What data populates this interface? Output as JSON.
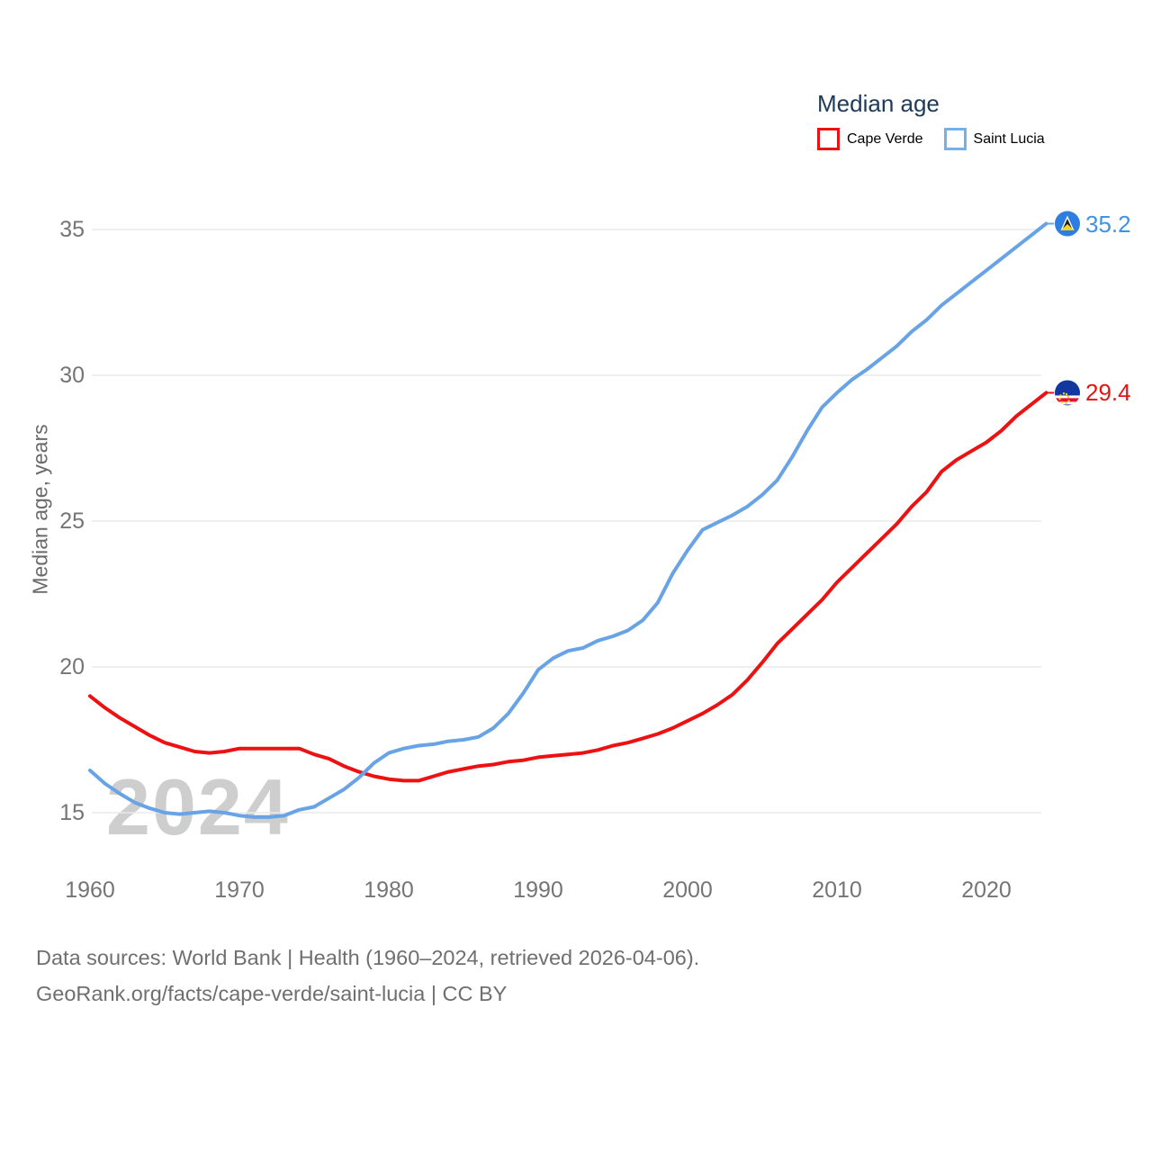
{
  "legend": {
    "title": "Median age",
    "items": [
      {
        "label": "Cape Verde",
        "box_color": "#ee1111"
      },
      {
        "label": "Saint Lucia",
        "box_color": "#74b0ea"
      }
    ]
  },
  "watermark": "2024",
  "y_axis_title": "Median age, years",
  "footer": {
    "line1": "Data sources: World Bank | Health (1960–2024, retrieved 2026-04-06).",
    "line2": "GeoRank.org/facts/cape-verde/saint-lucia | CC BY"
  },
  "colors": {
    "grid": "#eaeaea",
    "axis_text": "#757575",
    "legend_text": "#1e3a56",
    "cape_verde_red": "#ee1111",
    "saint_lucia_blue": "#68a3e6",
    "saint_lucia_label_blue": "#4191e6",
    "saint_lucia_circle": "#2e7de0",
    "cape_verde_circle": "#1238a0",
    "watermark_gray": "#cecece"
  },
  "chart_data": {
    "type": "line",
    "title": "Median age",
    "xlabel": "",
    "ylabel": "Median age, years",
    "grid": "horizontal-only",
    "legend_position": "top-right",
    "x_range": [
      1960,
      2024
    ],
    "ylim": [
      13.8,
      36.3
    ],
    "y_ticks": [
      15,
      20,
      25,
      30,
      35
    ],
    "x_ticks": [
      1960,
      1970,
      1980,
      1990,
      2000,
      2010,
      2020
    ],
    "x": [
      1960,
      1961,
      1962,
      1963,
      1964,
      1965,
      1966,
      1967,
      1968,
      1969,
      1970,
      1971,
      1972,
      1973,
      1974,
      1975,
      1976,
      1977,
      1978,
      1979,
      1980,
      1981,
      1982,
      1983,
      1984,
      1985,
      1986,
      1987,
      1988,
      1989,
      1990,
      1991,
      1992,
      1993,
      1994,
      1995,
      1996,
      1997,
      1998,
      1999,
      2000,
      2001,
      2002,
      2003,
      2004,
      2005,
      2006,
      2007,
      2008,
      2009,
      2010,
      2011,
      2012,
      2013,
      2014,
      2015,
      2016,
      2017,
      2018,
      2019,
      2020,
      2021,
      2022,
      2023,
      2024
    ],
    "series": [
      {
        "name": "Cape Verde",
        "color": "#ee1111",
        "label_color": "#ee1111",
        "end_label": "29.4",
        "end_value": 29.4,
        "values": [
          19.0,
          18.6,
          18.25,
          17.95,
          17.65,
          17.4,
          17.25,
          17.1,
          17.05,
          17.1,
          17.2,
          17.2,
          17.2,
          17.2,
          17.2,
          17.0,
          16.85,
          16.6,
          16.4,
          16.25,
          16.15,
          16.1,
          16.1,
          16.25,
          16.4,
          16.5,
          16.6,
          16.65,
          16.75,
          16.8,
          16.9,
          16.95,
          17.0,
          17.05,
          17.15,
          17.3,
          17.4,
          17.55,
          17.7,
          17.9,
          18.15,
          18.4,
          18.7,
          19.05,
          19.55,
          20.15,
          20.8,
          21.3,
          21.8,
          22.3,
          22.9,
          23.4,
          23.9,
          24.4,
          24.9,
          25.5,
          26.0,
          26.7,
          27.1,
          27.4,
          27.7,
          28.1,
          28.6,
          29.0,
          29.4
        ]
      },
      {
        "name": "Saint Lucia",
        "color": "#68a3e6",
        "label_color": "#4191e6",
        "end_label": "35.2",
        "end_value": 35.2,
        "values": [
          16.45,
          16.0,
          15.65,
          15.35,
          15.15,
          15.0,
          14.95,
          15.0,
          15.05,
          15.0,
          14.9,
          14.85,
          14.85,
          14.9,
          15.1,
          15.2,
          15.5,
          15.8,
          16.2,
          16.7,
          17.05,
          17.2,
          17.3,
          17.35,
          17.45,
          17.5,
          17.6,
          17.9,
          18.4,
          19.1,
          19.9,
          20.3,
          20.55,
          20.65,
          20.9,
          21.05,
          21.25,
          21.6,
          22.2,
          23.2,
          24.0,
          24.7,
          24.95,
          25.2,
          25.5,
          25.9,
          26.4,
          27.2,
          28.1,
          28.9,
          29.4,
          29.85,
          30.2,
          30.6,
          31.0,
          31.5,
          31.9,
          32.4,
          32.8,
          33.2,
          33.6,
          34.0,
          34.4,
          34.8,
          35.2
        ]
      }
    ]
  }
}
